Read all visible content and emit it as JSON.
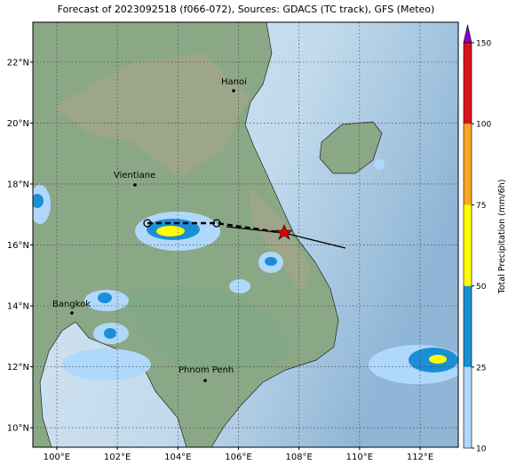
{
  "title": "Forecast of 2023092518 (f066-072), Sources: GDACS (TC track), GFS (Meteo)",
  "map": {
    "lonlim": [
      99.21,
      113.26
    ],
    "latlim": [
      9.36,
      23.31
    ],
    "lonticks": [
      {
        "value": 100,
        "label": "100°E"
      },
      {
        "value": 102,
        "label": "102°E"
      },
      {
        "value": 104,
        "label": "104°E"
      },
      {
        "value": 106,
        "label": "106°E"
      },
      {
        "value": 108,
        "label": "108°E"
      },
      {
        "value": 110,
        "label": "110°E"
      },
      {
        "value": 112,
        "label": "112°E"
      }
    ],
    "latticks": [
      {
        "value": 10,
        "label": "10°N"
      },
      {
        "value": 12,
        "label": "12°N"
      },
      {
        "value": 14,
        "label": "14°N"
      },
      {
        "value": 16,
        "label": "16°N"
      },
      {
        "value": 18,
        "label": "18°N"
      },
      {
        "value": 20,
        "label": "20°N"
      },
      {
        "value": 22,
        "label": "22°N"
      }
    ],
    "cities": [
      "Hanoi",
      "Vientiane",
      "Bangkok",
      "Phnom Penh"
    ]
  },
  "colorbar": {
    "label": "Total Precipitation (mm/6h)",
    "levels": [
      10,
      25,
      50,
      75,
      100,
      150
    ],
    "colors": [
      "#b0d8fa",
      "#1a8fd6",
      "#ffff00",
      "#f5a623",
      "#d9141a"
    ],
    "extend_color": "#8a00c8"
  }
}
